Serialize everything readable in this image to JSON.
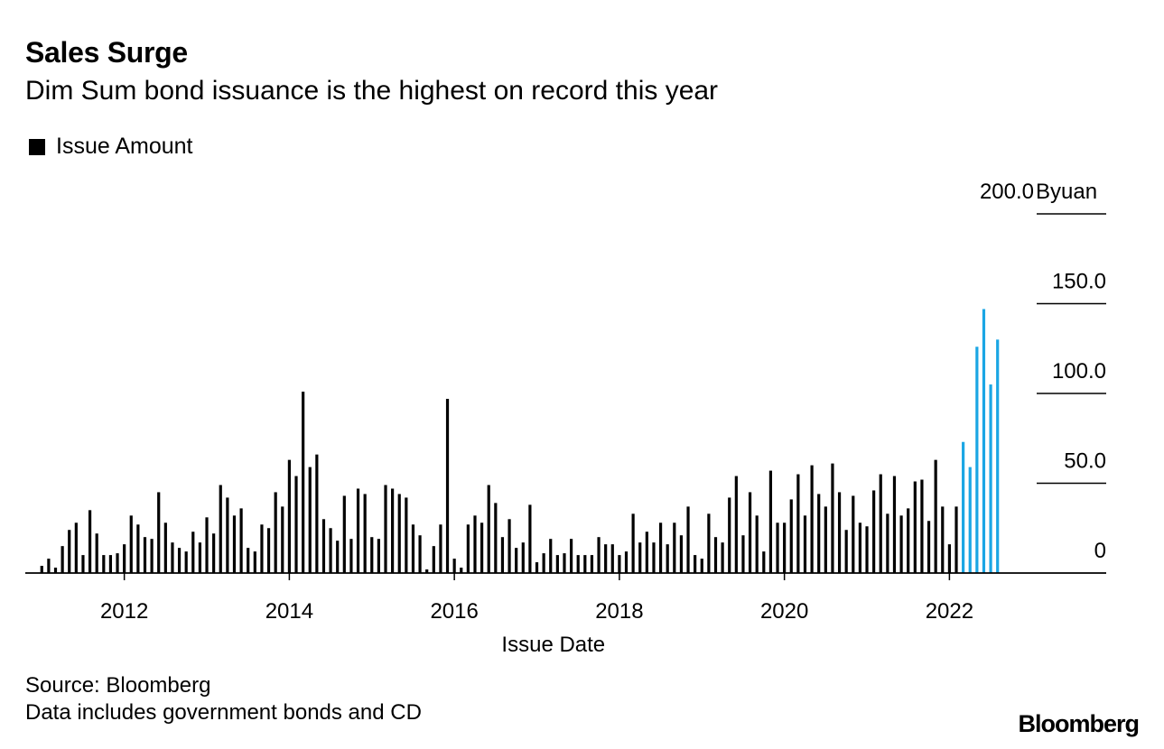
{
  "chart_data": {
    "type": "bar",
    "title": "Sales Surge",
    "subtitle": "Dim Sum bond issuance is the highest on record this year",
    "legend": [
      {
        "label": "Issue Amount",
        "color": "#000000"
      }
    ],
    "xlabel": "Issue Date",
    "ylabel": "",
    "y_unit": "Byuan",
    "ylim": [
      0,
      200
    ],
    "y_ticks": [
      0,
      50,
      100,
      150,
      200
    ],
    "y_tick_labels": [
      "0",
      "50.0",
      "100.0",
      "150.0",
      "200.0"
    ],
    "x_range": [
      2010.8,
      2023.9
    ],
    "x_ticks": [
      2012,
      2014,
      2016,
      2018,
      2020,
      2022
    ],
    "x_tick_labels": [
      "2012",
      "2014",
      "2016",
      "2018",
      "2020",
      "2022"
    ],
    "series": [
      {
        "name": "Issue Amount",
        "color": "#000000",
        "start": "2011-01",
        "values": [
          4,
          8,
          3,
          15,
          24,
          28,
          10,
          35,
          22,
          10,
          10,
          11,
          16,
          32,
          27,
          20,
          19,
          45,
          28,
          17,
          14,
          12,
          23,
          17,
          31,
          22,
          49,
          42,
          32,
          36,
          14,
          12,
          27,
          25,
          45,
          37,
          63,
          54,
          101,
          59,
          66,
          30,
          25,
          18,
          43,
          19,
          47,
          44,
          20,
          19,
          49,
          47,
          44,
          42,
          27,
          21,
          2,
          15,
          27,
          97,
          8,
          3,
          27,
          32,
          28,
          49,
          39,
          20,
          30,
          14,
          17,
          38,
          6,
          11,
          19,
          10,
          11,
          19,
          10,
          10,
          10,
          20,
          16,
          16,
          10,
          12,
          33,
          17,
          23,
          17,
          28,
          16,
          28,
          21,
          37,
          10,
          8,
          33,
          20,
          17,
          42,
          54,
          21,
          45,
          32,
          12,
          57,
          28,
          28,
          41,
          55,
          32,
          60,
          44,
          37,
          61,
          45,
          24,
          43,
          28,
          26,
          46,
          55,
          33,
          54,
          32,
          36,
          51,
          52,
          29,
          63,
          37,
          16,
          37
        ]
      },
      {
        "name": "Issue Amount 2022",
        "color": "#1ba6e4",
        "start": "2022-03",
        "values": [
          73,
          59,
          126,
          147,
          105,
          130
        ]
      }
    ]
  },
  "footer": {
    "source": "Source: Bloomberg",
    "note": "Data includes government bonds and CD",
    "brand": "Bloomberg"
  }
}
